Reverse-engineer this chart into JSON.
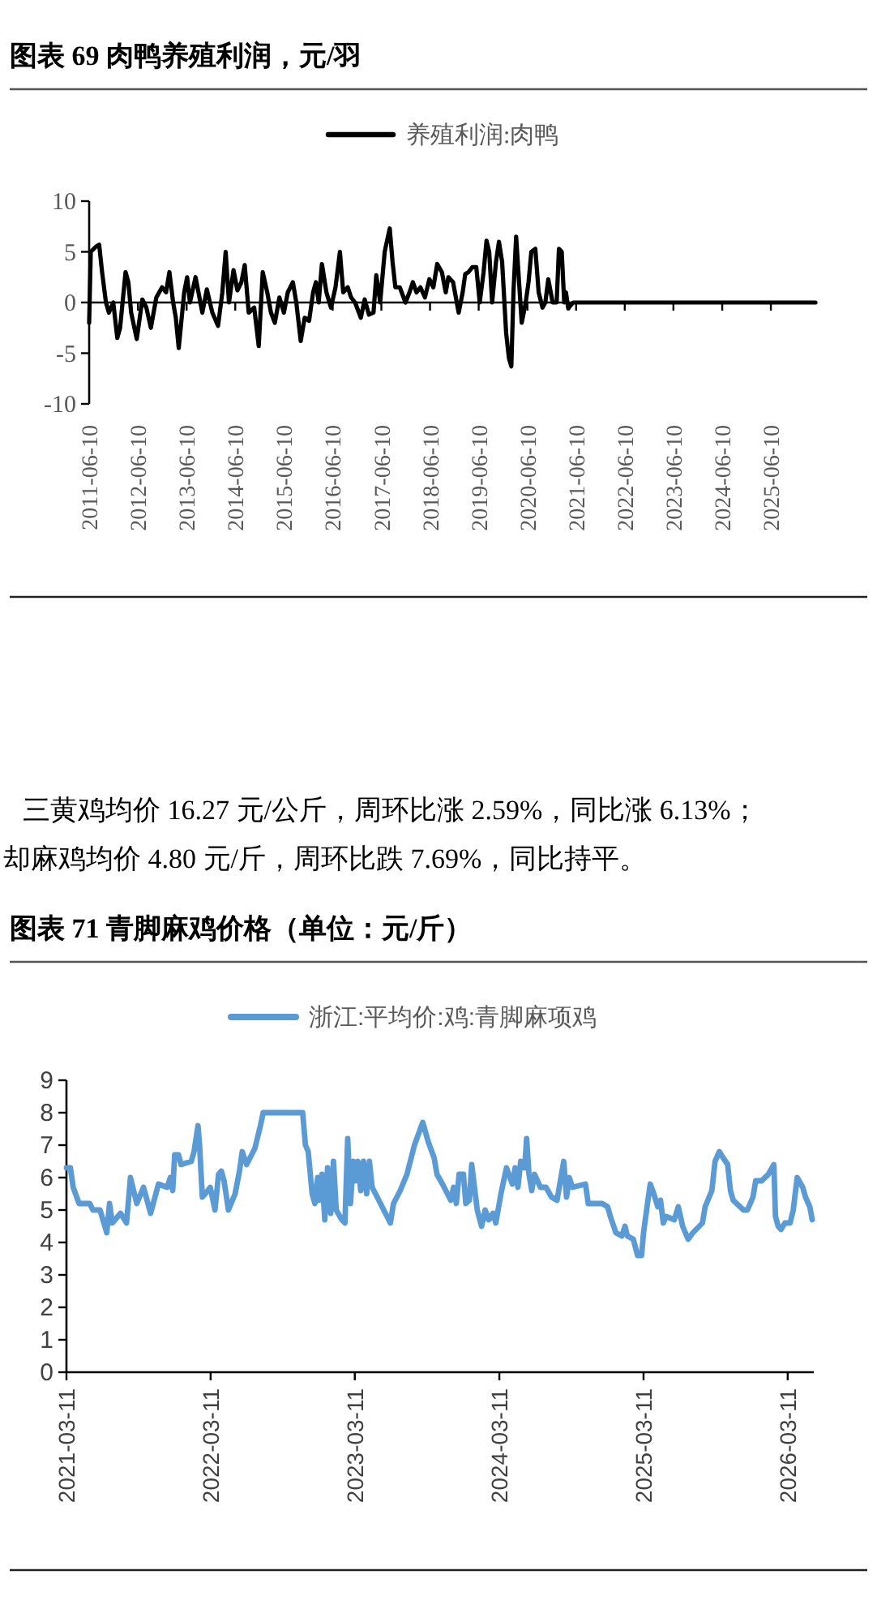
{
  "chart_data": [
    {
      "type": "line",
      "title": "图表 69 肉鸭养殖利润，元/羽",
      "legend": "top",
      "line_style": "solid",
      "xlim": [
        "2011-06-10",
        "2026-05-10"
      ],
      "ylim": [
        -10,
        10
      ],
      "yticks": [
        -10,
        -5,
        0,
        5,
        10
      ],
      "xticks": [
        {
          "value": "2011-06-10",
          "label": "2011-06-10"
        },
        {
          "value": "2012-06-10",
          "label": "2012-06-10"
        },
        {
          "value": "2013-06-10",
          "label": "2013-06-10"
        },
        {
          "value": "2014-06-10",
          "label": "2014-06-10"
        },
        {
          "value": "2015-06-10",
          "label": "2015-06-10"
        },
        {
          "value": "2016-06-10",
          "label": "2016-06-10"
        },
        {
          "value": "2017-06-10",
          "label": "2017-06-10"
        },
        {
          "value": "2018-06-10",
          "label": "2018-06-10"
        },
        {
          "value": "2019-06-10",
          "label": "2019-06-10"
        },
        {
          "value": "2020-06-10",
          "label": "2020-06-10"
        },
        {
          "value": "2021-06-10",
          "label": "2021-06-10"
        },
        {
          "value": "2022-06-10",
          "label": "2022-06-10"
        },
        {
          "value": "2023-06-10",
          "label": "2023-06-10"
        },
        {
          "value": "2024-06-10",
          "label": "2024-06-10"
        },
        {
          "value": "2025-06-10",
          "label": "2025-06-10"
        }
      ],
      "annotations": [
        "三黄鸡均价 16.27 元/公斤，周环比涨 2.59%，同比涨 6.13%；",
        "却麻鸡均价 4.80 元/斤，周环比跌 7.69%，同比持平。"
      ],
      "x": [
        "2011-06-10",
        "2011-06-22",
        "2011-07-30",
        "2011-08-24",
        "2011-09-15",
        "2011-10-14",
        "2011-11-05",
        "2011-12-08",
        "2012-01-07",
        "2012-01-28",
        "2012-03-09",
        "2012-03-30",
        "2012-04-20",
        "2012-06-01",
        "2012-07-13",
        "2012-08-12",
        "2012-09-15",
        "2012-10-26",
        "2012-12-08",
        "2013-01-07",
        "2013-02-01",
        "2013-03-01",
        "2013-03-21",
        "2013-04-12",
        "2013-05-23",
        "2013-06-14",
        "2013-07-05",
        "2013-08-16",
        "2013-09-07",
        "2013-10-06",
        "2013-11-09",
        "2013-12-20",
        "2014-02-01",
        "2014-03-05",
        "2014-03-30",
        "2014-04-24",
        "2014-05-28",
        "2014-06-26",
        "2014-07-26",
        "2014-08-20",
        "2014-09-19",
        "2014-10-30",
        "2014-12-03",
        "2015-01-02",
        "2015-02-05",
        "2015-03-05",
        "2015-04-03",
        "2015-05-07",
        "2015-06-10",
        "2015-07-09",
        "2015-08-16",
        "2015-09-11",
        "2015-10-14",
        "2015-11-13",
        "2015-12-16",
        "2016-01-15",
        "2016-02-05",
        "2016-02-26",
        "2016-03-21",
        "2016-04-24",
        "2016-05-28",
        "2016-07-01",
        "2016-08-03",
        "2016-08-28",
        "2016-10-01",
        "2016-10-26",
        "2016-11-25",
        "2017-01-07",
        "2017-02-05",
        "2017-03-09",
        "2017-04-12",
        "2017-05-03",
        "2017-06-01",
        "2017-07-05",
        "2017-07-21",
        "2017-08-12",
        "2017-09-02",
        "2017-09-23",
        "2017-10-26",
        "2017-12-08",
        "2018-01-07",
        "2018-02-01",
        "2018-03-01",
        "2018-03-30",
        "2018-05-03",
        "2018-06-05",
        "2018-07-05",
        "2018-08-03",
        "2018-09-07",
        "2018-10-06",
        "2018-10-26",
        "2018-11-30",
        "2019-01-11",
        "2019-02-10",
        "2019-03-01",
        "2019-03-26",
        "2019-04-24",
        "2019-05-23",
        "2019-06-18",
        "2019-07-17",
        "2019-08-08",
        "2019-08-28",
        "2019-09-19",
        "2019-10-18",
        "2019-11-09",
        "2019-12-03",
        "2020-01-02",
        "2020-01-23",
        "2020-02-10",
        "2020-02-26",
        "2020-03-17",
        "2020-04-08",
        "2020-04-28",
        "2020-05-28",
        "2020-06-18",
        "2020-07-09",
        "2020-08-08",
        "2020-09-02",
        "2020-10-01",
        "2020-10-22",
        "2020-11-13",
        "2020-12-16",
        "2021-01-15",
        "2021-02-01",
        "2021-02-22",
        "2021-03-13",
        "2021-03-26",
        "2021-04-12",
        "2021-04-28",
        "2021-05-19",
        "2026-05-10"
      ],
      "series": [
        {
          "name": "养殖利润:肉鸭",
          "color": "#000000",
          "values": [
            -2,
            5,
            5.5,
            5.7,
            3,
            0,
            -1,
            0,
            -3.5,
            -2.5,
            3,
            2,
            -1,
            -3.6,
            0.3,
            -0.5,
            -2.5,
            0.5,
            1.5,
            1,
            3,
            0,
            -1.5,
            -4.5,
            1,
            2.5,
            0,
            2.5,
            1,
            -1,
            1.3,
            -1,
            -2.3,
            1,
            5,
            0,
            3.2,
            1.2,
            2,
            3.7,
            -1,
            -0.5,
            -4.3,
            3,
            1,
            -1,
            -2,
            0.5,
            -1,
            1,
            2,
            0,
            -3.8,
            -1.5,
            -1.8,
            1,
            2,
            0,
            3.8,
            1,
            -0.5,
            1.5,
            5,
            1,
            1.5,
            0.5,
            0,
            -1.5,
            0.3,
            -1.2,
            -1,
            2.7,
            0,
            5,
            6,
            7.3,
            4,
            1.5,
            1.5,
            0,
            1,
            2,
            1,
            1.5,
            0.5,
            2.3,
            1.5,
            3.8,
            3,
            1,
            2.5,
            2,
            -1,
            1,
            2.8,
            3,
            3.5,
            3.5,
            0,
            3,
            6.1,
            5,
            0,
            4,
            6,
            4,
            -3,
            -5.5,
            -6.3,
            1,
            6.5,
            2,
            -2,
            0,
            2,
            5,
            5.3,
            1,
            -0.5,
            0,
            2.3,
            0,
            0,
            5.3,
            5,
            0,
            1,
            -0.6,
            -0.3,
            0,
            0
          ]
        }
      ]
    },
    {
      "type": "line",
      "title": "图表 71 青脚麻鸡价格（单位：元/斤）",
      "legend": "top",
      "line_style": "solid",
      "xlim": [
        "2021-03-11",
        "2026-05-16"
      ],
      "ylim": [
        0,
        9
      ],
      "yticks": [
        0,
        1,
        2,
        3,
        4,
        5,
        6,
        7,
        8,
        9
      ],
      "xticks": [
        {
          "value": "2021-03-11",
          "label": "2021-03-11"
        },
        {
          "value": "2022-03-11",
          "label": "2022-03-11"
        },
        {
          "value": "2023-03-11",
          "label": "2023-03-11"
        },
        {
          "value": "2024-03-11",
          "label": "2024-03-11"
        },
        {
          "value": "2025-03-11",
          "label": "2025-03-11"
        },
        {
          "value": "2026-03-11",
          "label": "2026-03-11"
        }
      ],
      "x": [
        "2021-03-11",
        "2021-03-21",
        "2021-03-28",
        "2021-04-12",
        "2021-05-09",
        "2021-05-17",
        "2021-06-04",
        "2021-06-21",
        "2021-06-28",
        "2021-07-05",
        "2021-07-26",
        "2021-08-10",
        "2021-08-20",
        "2021-09-05",
        "2021-09-22",
        "2021-10-10",
        "2021-10-30",
        "2021-11-21",
        "2021-11-29",
        "2021-12-05",
        "2021-12-10",
        "2021-12-20",
        "2021-12-26",
        "2022-01-21",
        "2022-01-28",
        "2022-02-07",
        "2022-02-11",
        "2022-02-18",
        "2022-03-04",
        "2022-03-10",
        "2022-03-22",
        "2022-03-31",
        "2022-04-07",
        "2022-04-14",
        "2022-04-25",
        "2022-05-12",
        "2022-05-23",
        "2022-05-30",
        "2022-06-10",
        "2022-07-01",
        "2022-07-15",
        "2022-07-22",
        "2022-10-30",
        "2022-11-06",
        "2022-11-13",
        "2022-11-23",
        "2022-11-30",
        "2022-12-07",
        "2022-12-11",
        "2022-12-18",
        "2022-12-25",
        "2023-01-01",
        "2023-01-09",
        "2023-01-16",
        "2023-01-23",
        "2023-02-06",
        "2023-02-14",
        "2023-02-21",
        "2023-02-28",
        "2023-03-07",
        "2023-03-12",
        "2023-03-19",
        "2023-03-26",
        "2023-04-02",
        "2023-04-10",
        "2023-04-17",
        "2023-04-24",
        "2023-05-15",
        "2023-06-09",
        "2023-06-17",
        "2023-07-04",
        "2023-07-21",
        "2023-08-09",
        "2023-08-30",
        "2023-09-13",
        "2023-09-28",
        "2023-10-05",
        "2023-10-19",
        "2023-11-09",
        "2023-11-16",
        "2023-11-23",
        "2023-11-30",
        "2023-12-11",
        "2023-12-17",
        "2023-12-26",
        "2024-01-01",
        "2024-01-15",
        "2024-01-26",
        "2024-02-04",
        "2024-02-13",
        "2024-02-24",
        "2024-03-02",
        "2024-03-15",
        "2024-03-29",
        "2024-04-13",
        "2024-04-20",
        "2024-04-27",
        "2024-05-04",
        "2024-05-14",
        "2024-05-19",
        "2024-05-25",
        "2024-06-01",
        "2024-06-08",
        "2024-06-23",
        "2024-07-07",
        "2024-07-21",
        "2024-08-04",
        "2024-08-11",
        "2024-08-21",
        "2024-08-28",
        "2024-09-04",
        "2024-09-12",
        "2024-10-15",
        "2024-10-22",
        "2024-11-26",
        "2024-12-10",
        "2024-12-17",
        "2024-12-31",
        "2025-01-15",
        "2025-01-23",
        "2025-01-29",
        "2025-02-13",
        "2025-02-24",
        "2025-03-06",
        "2025-03-11",
        "2025-03-21",
        "2025-03-28",
        "2025-04-06",
        "2025-04-16",
        "2025-04-23",
        "2025-04-30",
        "2025-05-07",
        "2025-05-28",
        "2025-06-07",
        "2025-06-18",
        "2025-07-02",
        "2025-07-14",
        "2025-08-07",
        "2025-08-14",
        "2025-08-31",
        "2025-09-08",
        "2025-09-19",
        "2025-09-29",
        "2025-10-10",
        "2025-10-17",
        "2025-10-24",
        "2025-11-19",
        "2025-11-29",
        "2025-12-13",
        "2025-12-20",
        "2026-01-04",
        "2026-01-21",
        "2026-02-04",
        "2026-02-08",
        "2026-02-15",
        "2026-02-22",
        "2026-03-04",
        "2026-03-17",
        "2026-03-25",
        "2026-04-04",
        "2026-04-18",
        "2026-04-25",
        "2026-05-06",
        "2026-05-12"
      ],
      "series": [
        {
          "name": "浙江:平均价:鸡:青脚麻项鸡",
          "color": "#5b9bd5",
          "values": [
            6.3,
            6.3,
            5.7,
            5.2,
            5.2,
            5.0,
            5.0,
            4.3,
            5.2,
            4.6,
            4.9,
            4.6,
            6.0,
            5.2,
            5.7,
            4.9,
            5.8,
            5.7,
            6.0,
            5.6,
            6.7,
            6.7,
            6.4,
            6.5,
            6.8,
            7.6,
            7.0,
            5.4,
            5.6,
            5.7,
            5.0,
            6.1,
            6.2,
            5.9,
            5.0,
            5.5,
            6.2,
            6.8,
            6.4,
            6.9,
            7.6,
            8.0,
            8.0,
            7.0,
            6.8,
            5.5,
            5.2,
            6.0,
            5.3,
            6.1,
            4.7,
            6.3,
            4.9,
            6.5,
            5.0,
            4.7,
            4.6,
            7.2,
            5.2,
            6.5,
            5.9,
            6.5,
            5.6,
            6.5,
            5.5,
            6.5,
            5.7,
            5.2,
            4.6,
            5.2,
            5.6,
            6.1,
            7.0,
            7.7,
            7.1,
            6.6,
            6.1,
            5.8,
            5.3,
            5.7,
            5.2,
            6.1,
            6.1,
            5.2,
            5.3,
            6.4,
            5.0,
            4.5,
            5.0,
            4.7,
            4.9,
            4.6,
            5.5,
            6.3,
            5.8,
            6.3,
            5.7,
            6.5,
            6.3,
            7.2,
            6.1,
            5.6,
            6.1,
            5.7,
            5.7,
            5.4,
            5.3,
            5.8,
            6.5,
            5.4,
            6.0,
            5.7,
            5.8,
            5.2,
            5.2,
            5.1,
            4.8,
            4.3,
            4.2,
            4.5,
            4.2,
            4.1,
            3.6,
            3.6,
            4.3,
            5.2,
            5.8,
            5.5,
            5.1,
            5.3,
            4.6,
            4.8,
            4.7,
            5.1,
            4.5,
            4.1,
            4.3,
            4.6,
            5.1,
            5.6,
            6.5,
            6.8,
            6.6,
            6.4,
            5.6,
            5.3,
            5.0,
            5.0,
            5.4,
            5.9,
            5.9,
            6.1,
            6.4,
            4.8,
            4.5,
            4.4,
            4.6,
            4.6,
            5.0,
            6.0,
            5.7,
            5.4,
            5.1,
            4.7
          ]
        }
      ]
    }
  ]
}
